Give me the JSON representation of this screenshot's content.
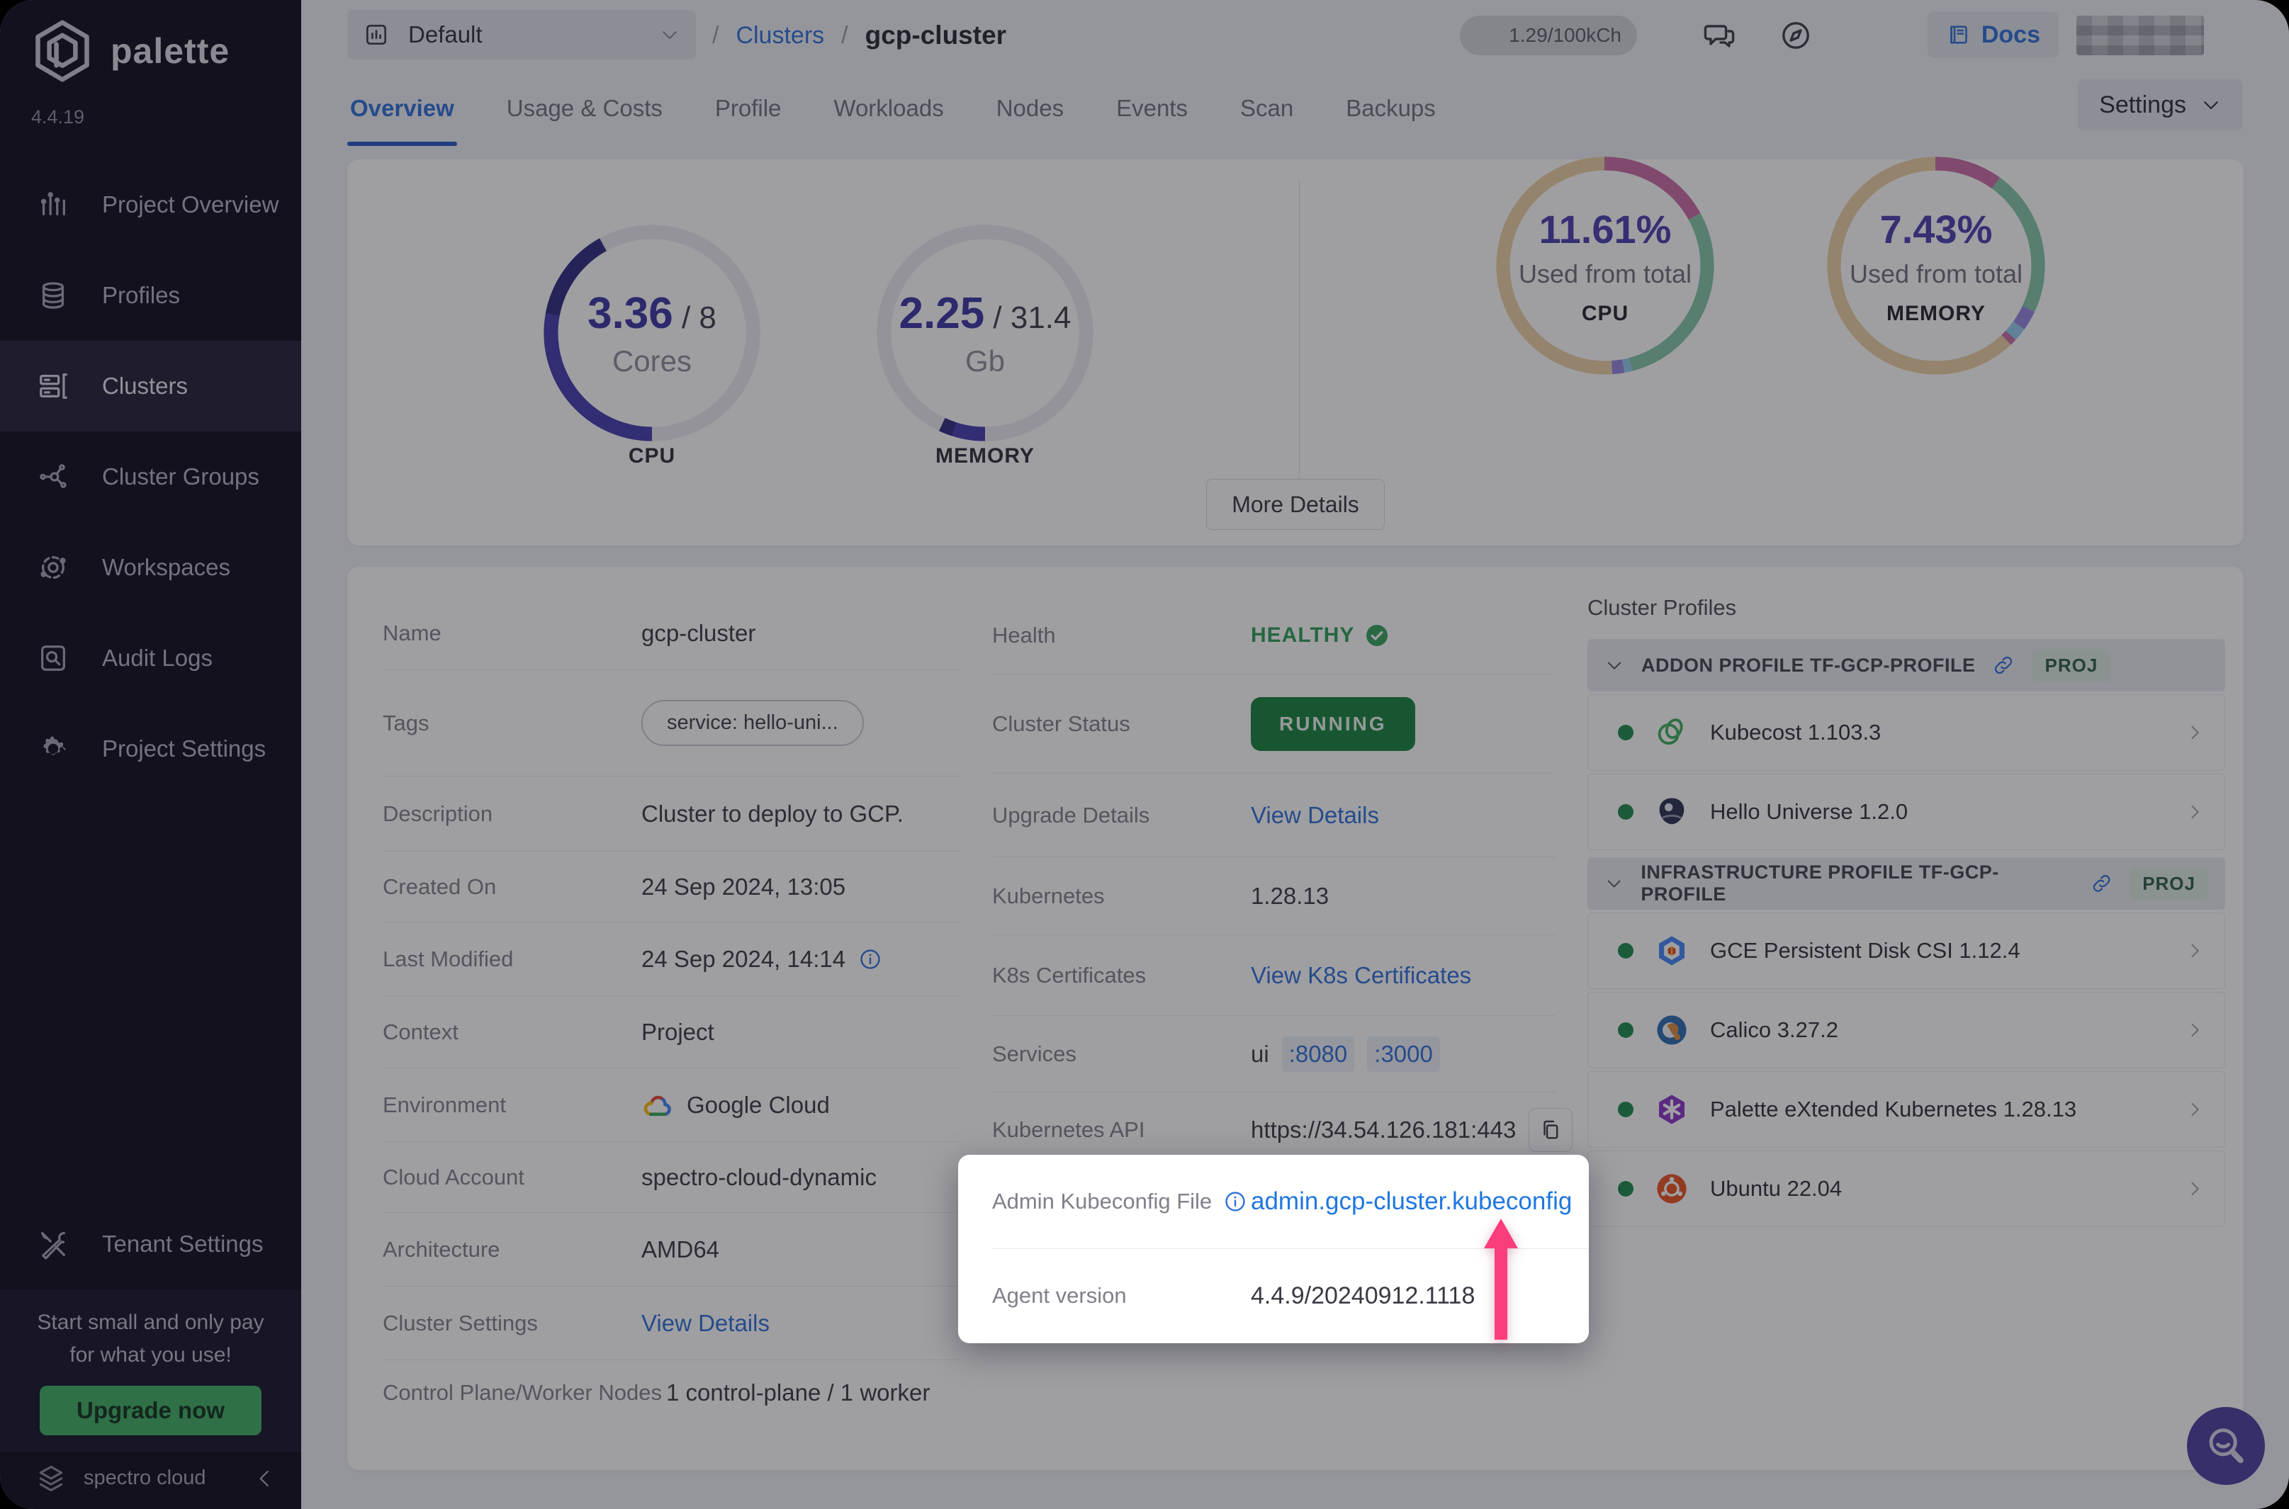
{
  "window": {
    "brand": "palette",
    "app_version": "4.4.19",
    "footer_brand": "spectro cloud"
  },
  "colors": {
    "accent_blue": "#2e6fd8",
    "link_bright": "#1f77e0",
    "healthy_green": "#2f9e57",
    "running_green": "#17813f",
    "upgrade_green": "#3fae63",
    "arrow_pink": "#fa3e7c",
    "gauge_indigo": "#453cae",
    "gauge_indigo_dark": "#2e2a80",
    "donut_tan": "#ecd0a4",
    "donut_pink": "#cc6ba4",
    "donut_green": "#83c7a6",
    "donut_purple": "#9785e0",
    "donut_blue": "#93cbee",
    "sidebar_bg": "#0e0b1c"
  },
  "sidebar": {
    "items": [
      {
        "icon": "chart-bars",
        "label": "Project Overview",
        "active": false
      },
      {
        "icon": "layers",
        "label": "Profiles",
        "active": false
      },
      {
        "icon": "servers",
        "label": "Clusters",
        "active": true
      },
      {
        "icon": "network",
        "label": "Cluster Groups",
        "active": false
      },
      {
        "icon": "orbit",
        "label": "Workspaces",
        "active": false
      },
      {
        "icon": "audit",
        "label": "Audit Logs",
        "active": false
      },
      {
        "icon": "gear",
        "label": "Project Settings",
        "active": false
      }
    ],
    "tenant": {
      "icon": "tools",
      "label": "Tenant Settings"
    },
    "promo": {
      "line1": "Start small and only pay",
      "line2": "for what you use!",
      "button": "Upgrade now"
    }
  },
  "topbar": {
    "project_selector": "Default",
    "breadcrumb": {
      "separator": "/",
      "link": "Clusters",
      "current": "gcp-cluster"
    },
    "usage": "1.29/100kCh",
    "docs_label": "Docs"
  },
  "tabs": {
    "items": [
      {
        "label": "Overview",
        "active": true
      },
      {
        "label": "Usage & Costs",
        "active": false
      },
      {
        "label": "Profile",
        "active": false
      },
      {
        "label": "Workloads",
        "active": false
      },
      {
        "label": "Nodes",
        "active": false
      },
      {
        "label": "Events",
        "active": false
      },
      {
        "label": "Scan",
        "active": false
      },
      {
        "label": "Backups",
        "active": false
      }
    ],
    "settings_button": "Settings"
  },
  "chart_data": [
    {
      "id": "cpu-gauge",
      "type": "gauge",
      "used": 3.36,
      "total": 8,
      "used_display": "3.36",
      "total_display": "/ 8",
      "unit": "Cores",
      "caption": "CPU",
      "fraction": 0.42,
      "color": "#453cae",
      "color_dark": "#2e2a80",
      "track": "#ebebf0"
    },
    {
      "id": "memory-gauge",
      "type": "gauge",
      "used": 2.25,
      "total": 31.4,
      "used_display": "2.25",
      "total_display": "/ 31.4",
      "unit": "Gb",
      "caption": "MEMORY",
      "fraction": 0.072,
      "color": "#453cae",
      "color_dark": "#2e2a80",
      "track": "#ebebf0"
    },
    {
      "id": "cpu-donut",
      "type": "donut",
      "percent_display": "11.61%",
      "label": "Used from total",
      "caption": "CPU",
      "segments": [
        {
          "name": "used-system",
          "value": 17,
          "color": "#cc6ba4"
        },
        {
          "name": "used-workloads",
          "value": 29,
          "color": "#83c7a6"
        },
        {
          "name": "other-a",
          "value": 1.2,
          "color": "#93cbee"
        },
        {
          "name": "other-b",
          "value": 1.8,
          "color": "#9785e0"
        },
        {
          "name": "free",
          "value": 51,
          "color": "#ecd0a4"
        }
      ]
    },
    {
      "id": "memory-donut",
      "type": "donut",
      "percent_display": "7.43%",
      "label": "Used from total",
      "caption": "MEMORY",
      "segments": [
        {
          "name": "used-system",
          "value": 10,
          "color": "#cc6ba4"
        },
        {
          "name": "used-workloads",
          "value": 22,
          "color": "#83c7a6"
        },
        {
          "name": "other-a",
          "value": 3,
          "color": "#9785e0"
        },
        {
          "name": "other-b",
          "value": 2,
          "color": "#93cbee"
        },
        {
          "name": "other-c",
          "value": 1,
          "color": "#cc6ba4"
        },
        {
          "name": "free",
          "value": 62,
          "color": "#ecd0a4"
        }
      ]
    }
  ],
  "stats": {
    "more_details": "More Details"
  },
  "details": {
    "name_label": "Name",
    "name_value": "gcp-cluster",
    "tags_label": "Tags",
    "tags_value": "service: hello-uni...",
    "description_label": "Description",
    "description_value": "Cluster to deploy to GCP.",
    "created_label": "Created On",
    "created_value": "24 Sep 2024, 13:05",
    "modified_label": "Last Modified",
    "modified_value": "24 Sep 2024, 14:14",
    "context_label": "Context",
    "context_value": "Project",
    "environment_label": "Environment",
    "environment_value": "Google Cloud",
    "cloud_account_label": "Cloud Account",
    "cloud_account_value": "spectro-cloud-dynamic",
    "architecture_label": "Architecture",
    "architecture_value": "AMD64",
    "cluster_settings_label": "Cluster Settings",
    "cluster_settings_link": "View Details",
    "nodes_label": "Control Plane/Worker Nodes",
    "nodes_value": "1 control-plane / 1 worker",
    "health_label": "Health",
    "health_value": "HEALTHY",
    "status_label": "Cluster Status",
    "status_value": "RUNNING",
    "upgrade_label": "Upgrade Details",
    "upgrade_link": "View Details",
    "kubernetes_label": "Kubernetes",
    "kubernetes_value": "1.28.13",
    "certs_label": "K8s Certificates",
    "certs_link": "View K8s Certificates",
    "services_label": "Services",
    "services_name": "ui",
    "services_port1": ":8080",
    "services_port2": ":3000",
    "api_label": "Kubernetes API",
    "api_value": "https://34.54.126.181:443"
  },
  "spotlight": {
    "kubeconfig_label": "Admin Kubeconfig File",
    "kubeconfig_value": "admin.gcp-cluster.kubeconfig",
    "agent_label": "Agent version",
    "agent_value": "4.4.9/20240912.1118"
  },
  "cluster_profiles": {
    "title": "Cluster Profiles",
    "groups": [
      {
        "name": "ADDON PROFILE TF-GCP-PROFILE",
        "badge": "PROJ",
        "items": [
          {
            "logo": "kubecost",
            "name": "Kubecost 1.103.3"
          },
          {
            "logo": "hello-universe",
            "name": "Hello Universe 1.2.0"
          }
        ]
      },
      {
        "name": "INFRASTRUCTURE PROFILE TF-GCP-PROFILE",
        "badge": "PROJ",
        "items": [
          {
            "logo": "gce",
            "name": "GCE Persistent Disk CSI 1.12.4"
          },
          {
            "logo": "calico",
            "name": "Calico 3.27.2"
          },
          {
            "logo": "pxk",
            "name": "Palette eXtended Kubernetes 1.28.13"
          },
          {
            "logo": "ubuntu",
            "name": "Ubuntu 22.04"
          }
        ]
      }
    ]
  }
}
